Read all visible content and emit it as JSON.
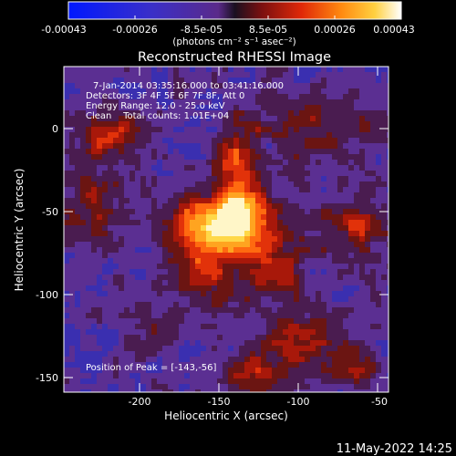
{
  "colorbar": {
    "tick_labels": [
      "-0.00043",
      "-0.00026",
      "-8.5e-05",
      "8.5e-05",
      "0.00026",
      "0.00043"
    ],
    "unit_label": "(photons cm⁻² s⁻¹ asec⁻²)"
  },
  "title": "Reconstructed RHESSI Image",
  "annotations": {
    "time_range": "7-Jan-2014 03:35:16.000 to 03:41:16.000",
    "detectors": "Detectors: 3F 4F 5F 6F 7F 8F, Att 0",
    "energy_range": "Energy Range: 12.0 - 25.0 keV",
    "clean_counts": "Clean    Total counts: 1.01E+04",
    "peak_position": "Position of Peak = [-143,-56]"
  },
  "axes": {
    "xlabel": "Heliocentric X (arcsec)",
    "ylabel": "Heliocentric Y (arcsec)",
    "x_ticks": [
      "-200",
      "-150",
      "-100",
      "-50"
    ],
    "y_ticks": [
      "0",
      "-50",
      "-100",
      "-150"
    ],
    "x_range": [
      -245,
      -50
    ],
    "y_range": [
      -155,
      20
    ]
  },
  "footer": {
    "timestamp": "11-May-2022 14:25"
  }
}
